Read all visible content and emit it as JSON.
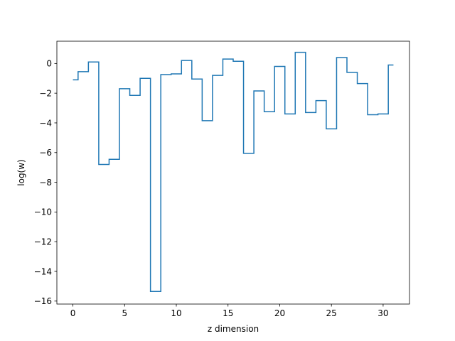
{
  "chart_data": {
    "type": "line",
    "style": "step",
    "xlabel": "z dimension",
    "ylabel": "log(w)",
    "xlim": [
      -1.55,
      32.55
    ],
    "ylim": [
      -16.2,
      1.5
    ],
    "xticks": [
      0,
      5,
      10,
      15,
      20,
      25,
      30
    ],
    "xtick_labels": [
      "0",
      "5",
      "10",
      "15",
      "20",
      "25",
      "30"
    ],
    "yticks": [
      0,
      -2,
      -4,
      -6,
      -8,
      -10,
      -12,
      -14,
      -16
    ],
    "ytick_labels": [
      "0",
      "−2",
      "−4",
      "−6",
      "−8",
      "−10",
      "−12",
      "−14",
      "−16"
    ],
    "grid": false,
    "line_color": "#1f77b4",
    "series": [
      {
        "x": [
          0,
          1,
          2,
          3,
          4,
          5,
          6,
          7,
          8,
          9,
          10,
          11,
          12,
          13,
          14,
          15,
          16,
          17,
          18,
          19,
          20,
          21,
          22,
          23,
          24,
          25,
          26,
          27,
          28,
          29,
          30,
          31
        ],
        "values": [
          -1.1,
          -0.55,
          0.1,
          -6.8,
          -6.45,
          -1.7,
          -2.15,
          -1.0,
          -15.35,
          -0.75,
          -0.7,
          0.2,
          -1.05,
          -3.85,
          -0.8,
          0.3,
          0.15,
          -6.05,
          -1.85,
          -3.25,
          -0.2,
          -3.4,
          0.75,
          -3.3,
          -2.5,
          -4.4,
          0.4,
          -0.6,
          -1.35,
          -3.45,
          -3.4,
          -0.1
        ]
      }
    ]
  }
}
